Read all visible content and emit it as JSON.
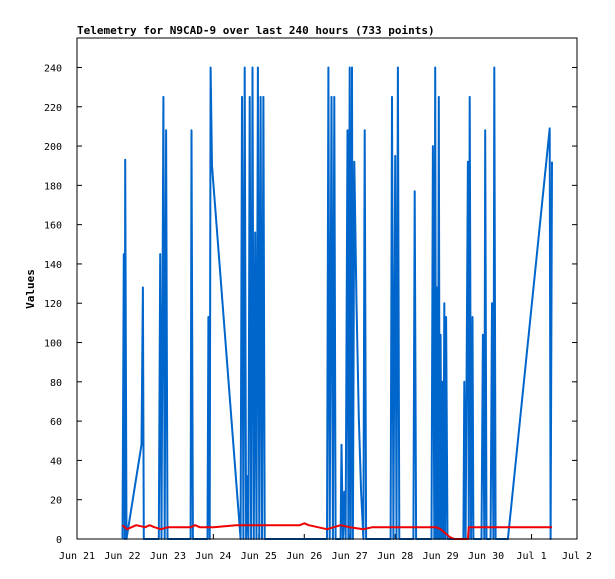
{
  "chart_data": {
    "type": "line",
    "title": "Telemetry for N9CAD-9 over last 240 hours (733 points)",
    "xlabel": "",
    "ylabel": "Values",
    "x_unit": "days (date axis)",
    "xlim": [
      "Jun 21",
      "Jul 2"
    ],
    "ylim": [
      0,
      255
    ],
    "grid": false,
    "legend": "none",
    "x_tick_labels": [
      "Jun 21",
      "Jun 22",
      "Jun 23",
      "Jun 24",
      "Jun 25",
      "Jun 26",
      "Jun 27",
      "Jun 28",
      "Jun 29",
      "Jun 30",
      "Jul 1",
      "Jul 2"
    ],
    "y_ticks": [
      0,
      20,
      40,
      60,
      80,
      100,
      120,
      140,
      160,
      180,
      200,
      220,
      240
    ],
    "series": [
      {
        "color": "#0066cc",
        "points": [
          [
            22.0,
            0
          ],
          [
            22.03,
            145
          ],
          [
            22.05,
            0
          ],
          [
            22.06,
            193
          ],
          [
            22.09,
            0
          ],
          [
            22.42,
            48
          ],
          [
            22.45,
            128
          ],
          [
            22.47,
            0
          ],
          [
            22.8,
            0
          ],
          [
            22.83,
            145
          ],
          [
            22.86,
            0
          ],
          [
            22.9,
            225
          ],
          [
            22.93,
            0
          ],
          [
            22.96,
            208
          ],
          [
            22.99,
            0
          ],
          [
            23.5,
            0
          ],
          [
            23.52,
            208
          ],
          [
            23.55,
            0
          ],
          [
            23.87,
            0
          ],
          [
            23.89,
            113
          ],
          [
            23.92,
            0
          ],
          [
            23.94,
            240
          ],
          [
            23.97,
            190
          ],
          [
            24.6,
            0
          ],
          [
            24.63,
            225
          ],
          [
            24.66,
            0
          ],
          [
            24.69,
            240
          ],
          [
            24.72,
            0
          ],
          [
            24.74,
            32
          ],
          [
            24.77,
            0
          ],
          [
            24.8,
            225
          ],
          [
            24.83,
            0
          ],
          [
            24.86,
            240
          ],
          [
            24.89,
            0
          ],
          [
            24.92,
            156
          ],
          [
            24.95,
            0
          ],
          [
            24.98,
            240
          ],
          [
            25.01,
            0
          ],
          [
            25.04,
            225
          ],
          [
            25.07,
            0
          ],
          [
            25.1,
            225
          ],
          [
            25.13,
            0
          ],
          [
            26.5,
            0
          ],
          [
            26.53,
            240
          ],
          [
            26.56,
            0
          ],
          [
            26.6,
            225
          ],
          [
            26.63,
            0
          ],
          [
            26.66,
            225
          ],
          [
            26.69,
            0
          ],
          [
            26.8,
            0
          ],
          [
            26.82,
            48
          ],
          [
            26.85,
            0
          ],
          [
            26.88,
            24
          ],
          [
            26.91,
            0
          ],
          [
            26.95,
            208
          ],
          [
            26.97,
            0
          ],
          [
            27.0,
            240
          ],
          [
            27.02,
            0
          ],
          [
            27.05,
            240
          ],
          [
            27.07,
            0
          ],
          [
            27.1,
            192
          ],
          [
            27.15,
            120
          ],
          [
            27.2,
            62
          ],
          [
            27.25,
            24
          ],
          [
            27.3,
            0
          ],
          [
            27.33,
            208
          ],
          [
            27.36,
            0
          ],
          [
            27.9,
            0
          ],
          [
            27.93,
            225
          ],
          [
            27.96,
            0
          ],
          [
            28.0,
            195
          ],
          [
            28.03,
            0
          ],
          [
            28.06,
            240
          ],
          [
            28.09,
            0
          ],
          [
            28.4,
            0
          ],
          [
            28.43,
            177
          ],
          [
            28.46,
            0
          ],
          [
            28.8,
            0
          ],
          [
            28.83,
            200
          ],
          [
            28.86,
            0
          ],
          [
            28.88,
            240
          ],
          [
            28.9,
            0
          ],
          [
            28.92,
            128
          ],
          [
            28.94,
            0
          ],
          [
            28.96,
            225
          ],
          [
            28.98,
            0
          ],
          [
            29.0,
            104
          ],
          [
            29.02,
            0
          ],
          [
            29.04,
            80
          ],
          [
            29.06,
            0
          ],
          [
            29.08,
            120
          ],
          [
            29.1,
            0
          ],
          [
            29.12,
            113
          ],
          [
            29.15,
            0
          ],
          [
            29.5,
            0
          ],
          [
            29.52,
            80
          ],
          [
            29.55,
            0
          ],
          [
            29.6,
            192
          ],
          [
            29.62,
            0
          ],
          [
            29.64,
            225
          ],
          [
            29.67,
            0
          ],
          [
            29.7,
            113
          ],
          [
            29.72,
            0
          ],
          [
            29.9,
            0
          ],
          [
            29.93,
            104
          ],
          [
            29.96,
            0
          ],
          [
            29.98,
            208
          ],
          [
            30.01,
            0
          ],
          [
            30.1,
            0
          ],
          [
            30.13,
            120
          ],
          [
            30.16,
            0
          ],
          [
            30.18,
            240
          ],
          [
            30.21,
            0
          ],
          [
            30.45,
            0
          ],
          [
            30.48,
            0
          ],
          [
            31.4,
            209
          ],
          [
            31.42,
            0
          ],
          [
            31.45,
            192
          ]
        ]
      },
      {
        "color": "#ee0000",
        "points": [
          [
            22.0,
            7
          ],
          [
            22.1,
            5
          ],
          [
            22.3,
            7
          ],
          [
            22.5,
            6
          ],
          [
            22.6,
            7
          ],
          [
            22.7,
            6
          ],
          [
            22.85,
            5
          ],
          [
            23.0,
            6
          ],
          [
            23.5,
            6
          ],
          [
            23.6,
            7
          ],
          [
            23.7,
            6
          ],
          [
            24.0,
            6
          ],
          [
            24.5,
            7
          ],
          [
            25.0,
            7
          ],
          [
            25.5,
            7
          ],
          [
            25.9,
            7
          ],
          [
            26.0,
            8
          ],
          [
            26.1,
            7
          ],
          [
            26.5,
            5
          ],
          [
            26.8,
            7
          ],
          [
            27.0,
            6
          ],
          [
            27.3,
            5
          ],
          [
            27.5,
            6
          ],
          [
            28.0,
            6
          ],
          [
            28.5,
            6
          ],
          [
            28.9,
            6
          ],
          [
            29.0,
            5
          ],
          [
            29.1,
            3
          ],
          [
            29.2,
            1
          ],
          [
            29.3,
            0
          ],
          [
            29.6,
            0
          ],
          [
            29.62,
            6
          ],
          [
            30.0,
            6
          ],
          [
            31.0,
            6
          ],
          [
            31.45,
            6
          ]
        ]
      },
      {
        "color": "#000000",
        "points": [
          [
            22.0,
            0
          ],
          [
            31.45,
            0
          ]
        ]
      }
    ]
  }
}
